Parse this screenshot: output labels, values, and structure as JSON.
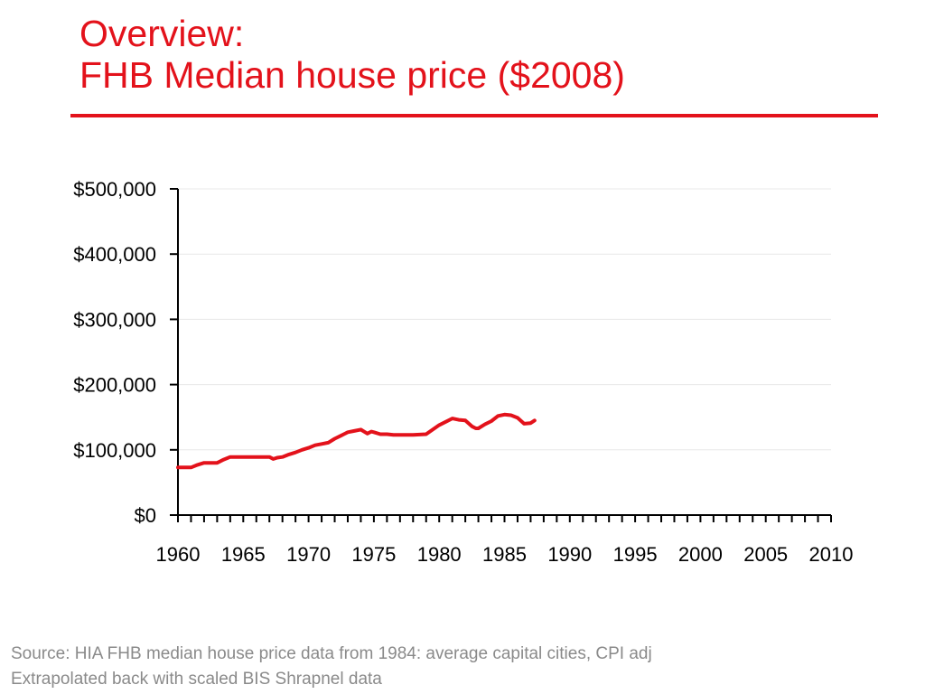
{
  "slide": {
    "title_line1": "Overview:",
    "title_line2": "FHB Median house price ($2008)",
    "source_line1": "Source: HIA FHB median house price data from 1984: average capital cities, CPI adj",
    "source_line2": "Extrapolated back with scaled BIS Shrapnel data",
    "accent_color": "#e3121b",
    "source_color": "#8a8a8a"
  },
  "chart_data": {
    "type": "line",
    "title": "",
    "xlabel": "",
    "ylabel": "",
    "xlim": [
      1960,
      2010
    ],
    "ylim": [
      0,
      500000
    ],
    "grid": true,
    "legend": "none",
    "x_ticks": [
      "1960",
      "1965",
      "1970",
      "1975",
      "1980",
      "1985",
      "1990",
      "1995",
      "2000",
      "2005",
      "2010"
    ],
    "y_ticks": [
      "$0",
      "$100,000",
      "$200,000",
      "$300,000",
      "$400,000",
      "$500,000"
    ],
    "series": [
      {
        "color": "#e3121b",
        "x": [
          1960,
          1961,
          1961.5,
          1962,
          1963,
          1963.5,
          1964,
          1965,
          1966,
          1967,
          1967.3,
          1967.6,
          1968,
          1968.5,
          1969,
          1969.5,
          1970,
          1970.5,
          1971,
          1971.5,
          1972,
          1972.5,
          1973,
          1973.5,
          1974,
          1974.5,
          1974.8,
          1975,
          1975.5,
          1976,
          1976.5,
          1977,
          1977.5,
          1978,
          1979,
          1980,
          1980.5,
          1981,
          1981.5,
          1982,
          1982.5,
          1982.8,
          1983,
          1983.5,
          1984,
          1984.5,
          1985,
          1985.5,
          1986,
          1986.5,
          1987,
          1987.3
        ],
        "y": [
          73000,
          73000,
          77000,
          80000,
          80000,
          85000,
          89000,
          89000,
          89000,
          89000,
          86000,
          88000,
          89000,
          93000,
          96000,
          100000,
          103000,
          107000,
          109000,
          111000,
          117000,
          122000,
          127000,
          129000,
          131000,
          125000,
          128000,
          127000,
          124000,
          124000,
          123000,
          123000,
          123000,
          123000,
          124000,
          138000,
          143000,
          148000,
          146000,
          145000,
          136000,
          133000,
          133000,
          139000,
          144000,
          152000,
          154000,
          153000,
          149000,
          140000,
          141000,
          145000
        ]
      }
    ]
  }
}
